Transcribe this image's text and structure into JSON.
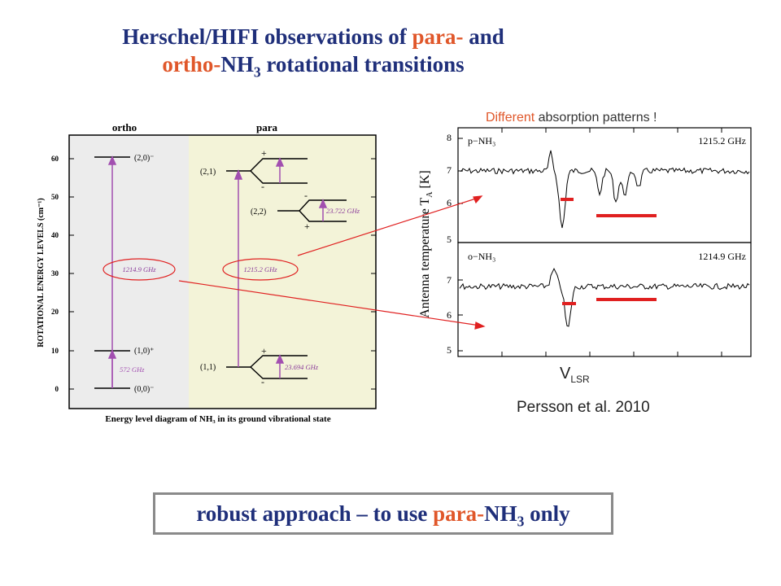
{
  "title": {
    "line1_prefix": "Herschel/HIFI observations of ",
    "line1_para": "para-",
    "line1_suffix": " and",
    "line2_ortho": "ortho-",
    "line2_nh": "NH",
    "line2_sub": "3",
    "line2_suffix": " rotational transitions"
  },
  "diagram": {
    "col_ortho": "ortho",
    "col_para": "para",
    "ylabel": "ROTATIONAL ENERGY LEVELS (cm⁻¹)",
    "yticks": [
      "0",
      "10",
      "20",
      "30",
      "40",
      "50",
      "60"
    ],
    "footer": "Energy level diagram of NH₃ in its ground vibrational state",
    "levels": {
      "l20": "(2,0)⁻",
      "l10": "(1,0)⁺",
      "l00": "(0,0)⁻",
      "l21": "(2,1)",
      "l22": "(2,2)",
      "l11": "(1,1)"
    },
    "freqs": {
      "f572": "572 GHz",
      "f1214": "1214.9 GHz",
      "f1215": "1215.2 GHz",
      "f23722": "23.722 GHz",
      "f23694": "23.694 GHz"
    },
    "signs": {
      "plus": "+",
      "minus": "-"
    }
  },
  "spectrum": {
    "caption_hl": "Different",
    "caption_rest": " absorption patterns !",
    "ylabel": "Antenna temperature T",
    "ylabel_sub": "A",
    "ylabel_unit": " [K]",
    "panel_top_label": "p−NH₃",
    "panel_top_freq": "1215.2 GHz",
    "panel_bot_label": "o−NH₃",
    "panel_bot_freq": "1214.9 GHz",
    "top_yticks": [
      "5",
      "6",
      "7",
      "8"
    ],
    "bot_yticks": [
      "5",
      "6",
      "7"
    ],
    "xlabel": "V",
    "xlabel_sub": "LSR",
    "citation": "Persson et al. 2010"
  },
  "conclusion": {
    "prefix": "robust approach – to use ",
    "para": "para-",
    "nh": "NH",
    "sub": "3",
    "suffix": " only"
  },
  "colors": {
    "title": "#1f2f7a",
    "accent": "#e0572a",
    "arrow": "#a24fb0",
    "red": "#e02020"
  }
}
